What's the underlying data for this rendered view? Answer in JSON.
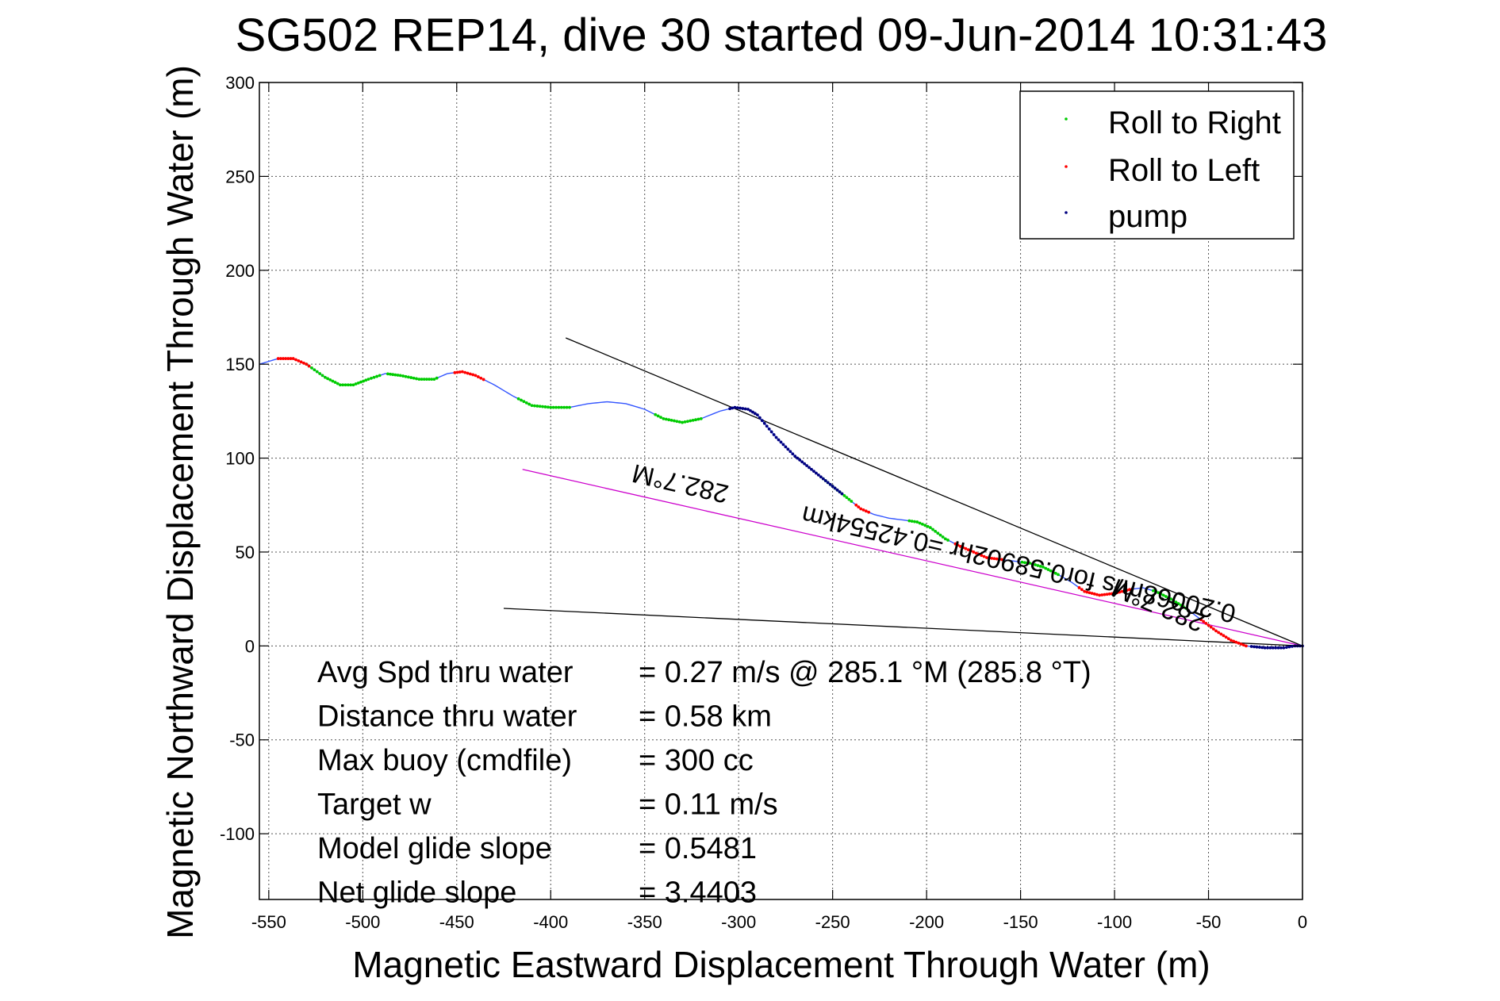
{
  "chart_data": {
    "type": "line",
    "title": "SG502 REP14, dive 30 started 09-Jun-2014 10:31:43",
    "xlabel": "Magnetic Eastward Displacement Through Water (m)",
    "ylabel": "Magnetic Northward Displacement Through Water (m)",
    "xlim": [
      -555,
      0
    ],
    "ylim": [
      -135,
      300
    ],
    "x_ticks": [
      -550,
      -500,
      -450,
      -400,
      -350,
      -300,
      -250,
      -200,
      -150,
      -100,
      -50,
      0
    ],
    "y_ticks": [
      300,
      250,
      200,
      150,
      100,
      50,
      0,
      -50,
      -100
    ],
    "grid": true,
    "legend_position": "top-right",
    "legend": [
      {
        "label": "Roll to Right",
        "color": "#00cc00"
      },
      {
        "label": "Roll to Left",
        "color": "#ff0000"
      },
      {
        "label": "pump",
        "color": "#000080"
      }
    ],
    "track": {
      "color": "#3355ff",
      "points": [
        [
          -555,
          150
        ],
        [
          -545,
          153
        ],
        [
          -537,
          153
        ],
        [
          -530,
          150
        ],
        [
          -520,
          143
        ],
        [
          -512,
          139
        ],
        [
          -505,
          139
        ],
        [
          -497,
          142
        ],
        [
          -488,
          145
        ],
        [
          -480,
          144
        ],
        [
          -470,
          142
        ],
        [
          -462,
          142
        ],
        [
          -455,
          145
        ],
        [
          -447,
          146
        ],
        [
          -440,
          144
        ],
        [
          -430,
          139
        ],
        [
          -420,
          133
        ],
        [
          -410,
          128
        ],
        [
          -400,
          127
        ],
        [
          -390,
          127
        ],
        [
          -380,
          129
        ],
        [
          -370,
          130
        ],
        [
          -360,
          129
        ],
        [
          -350,
          126
        ],
        [
          -340,
          121
        ],
        [
          -330,
          119
        ],
        [
          -320,
          121
        ],
        [
          -310,
          125
        ],
        [
          -302,
          127
        ],
        [
          -295,
          126
        ],
        [
          -290,
          123
        ],
        [
          -285,
          117
        ],
        [
          -280,
          111
        ],
        [
          -275,
          106
        ],
        [
          -270,
          101
        ],
        [
          -265,
          97
        ],
        [
          -260,
          93
        ],
        [
          -255,
          89
        ],
        [
          -250,
          85
        ],
        [
          -245,
          81
        ],
        [
          -240,
          77
        ],
        [
          -235,
          73
        ],
        [
          -228,
          70
        ],
        [
          -220,
          68
        ],
        [
          -212,
          67
        ],
        [
          -205,
          66
        ],
        [
          -198,
          63
        ],
        [
          -190,
          57
        ],
        [
          -182,
          53
        ],
        [
          -175,
          50
        ],
        [
          -168,
          47
        ],
        [
          -160,
          46
        ],
        [
          -152,
          45
        ],
        [
          -145,
          44
        ],
        [
          -138,
          42
        ],
        [
          -130,
          38
        ],
        [
          -123,
          34
        ],
        [
          -116,
          29
        ],
        [
          -108,
          27
        ],
        [
          -100,
          28
        ],
        [
          -92,
          30
        ],
        [
          -85,
          31
        ],
        [
          -78,
          29
        ],
        [
          -70,
          25
        ],
        [
          -62,
          20
        ],
        [
          -54,
          14
        ],
        [
          -46,
          8
        ],
        [
          -38,
          3
        ],
        [
          -30,
          0
        ],
        [
          -20,
          -1
        ],
        [
          -10,
          -1
        ],
        [
          -4,
          0
        ],
        [
          0,
          0
        ]
      ]
    },
    "roll_right_segments": [
      [
        -530,
        -490
      ],
      [
        -487,
        -460
      ],
      [
        -418,
        -390
      ],
      [
        -345,
        -320
      ],
      [
        -255,
        -240
      ],
      [
        -210,
        -188
      ],
      [
        -150,
        -130
      ],
      [
        -80,
        -62
      ]
    ],
    "roll_left_segments": [
      [
        -545,
        -528
      ],
      [
        -452,
        -435
      ],
      [
        -238,
        -230
      ],
      [
        -185,
        -160
      ],
      [
        -120,
        -90
      ],
      [
        -55,
        -30
      ]
    ],
    "pump_segments": [
      [
        -305,
        -245
      ],
      [
        -28,
        0
      ]
    ],
    "reference_lines": [
      {
        "name": "upper",
        "color": "#000000",
        "points": [
          [
            -392,
            164
          ],
          [
            0,
            0
          ]
        ]
      },
      {
        "name": "lower",
        "color": "#000000",
        "points": [
          [
            -425,
            20
          ],
          [
            0,
            0
          ]
        ]
      },
      {
        "name": "avg-heading",
        "color": "#cc00cc",
        "points": [
          [
            -415,
            94
          ],
          [
            0,
            0
          ]
        ]
      }
    ],
    "annotations": [
      {
        "text": "282.7°M",
        "at": [
          -330,
          91
        ],
        "rotation": 193
      },
      {
        "text": "0.20068m/s for0.58902hr =0.42554km",
        "at": [
          -150,
          48
        ],
        "rotation": 193
      },
      {
        "text": "282.7°M",
        "at": [
          -75,
          26
        ],
        "rotation": 203
      }
    ],
    "stats": [
      {
        "label": "Avg Spd thru water",
        "value": "=  0.27 m/s @ 285.1 °M (285.8 °T)"
      },
      {
        "label": "Distance thru water",
        "value": "=  0.58 km"
      },
      {
        "label": "Max buoy (cmdfile)",
        "value": "= 300 cc"
      },
      {
        "label": "Target w",
        "value": "= 0.11 m/s"
      },
      {
        "label": "Model glide slope",
        "value": "= 0.5481"
      },
      {
        "label": "Net glide slope",
        "value": "= 3.4403"
      }
    ]
  }
}
